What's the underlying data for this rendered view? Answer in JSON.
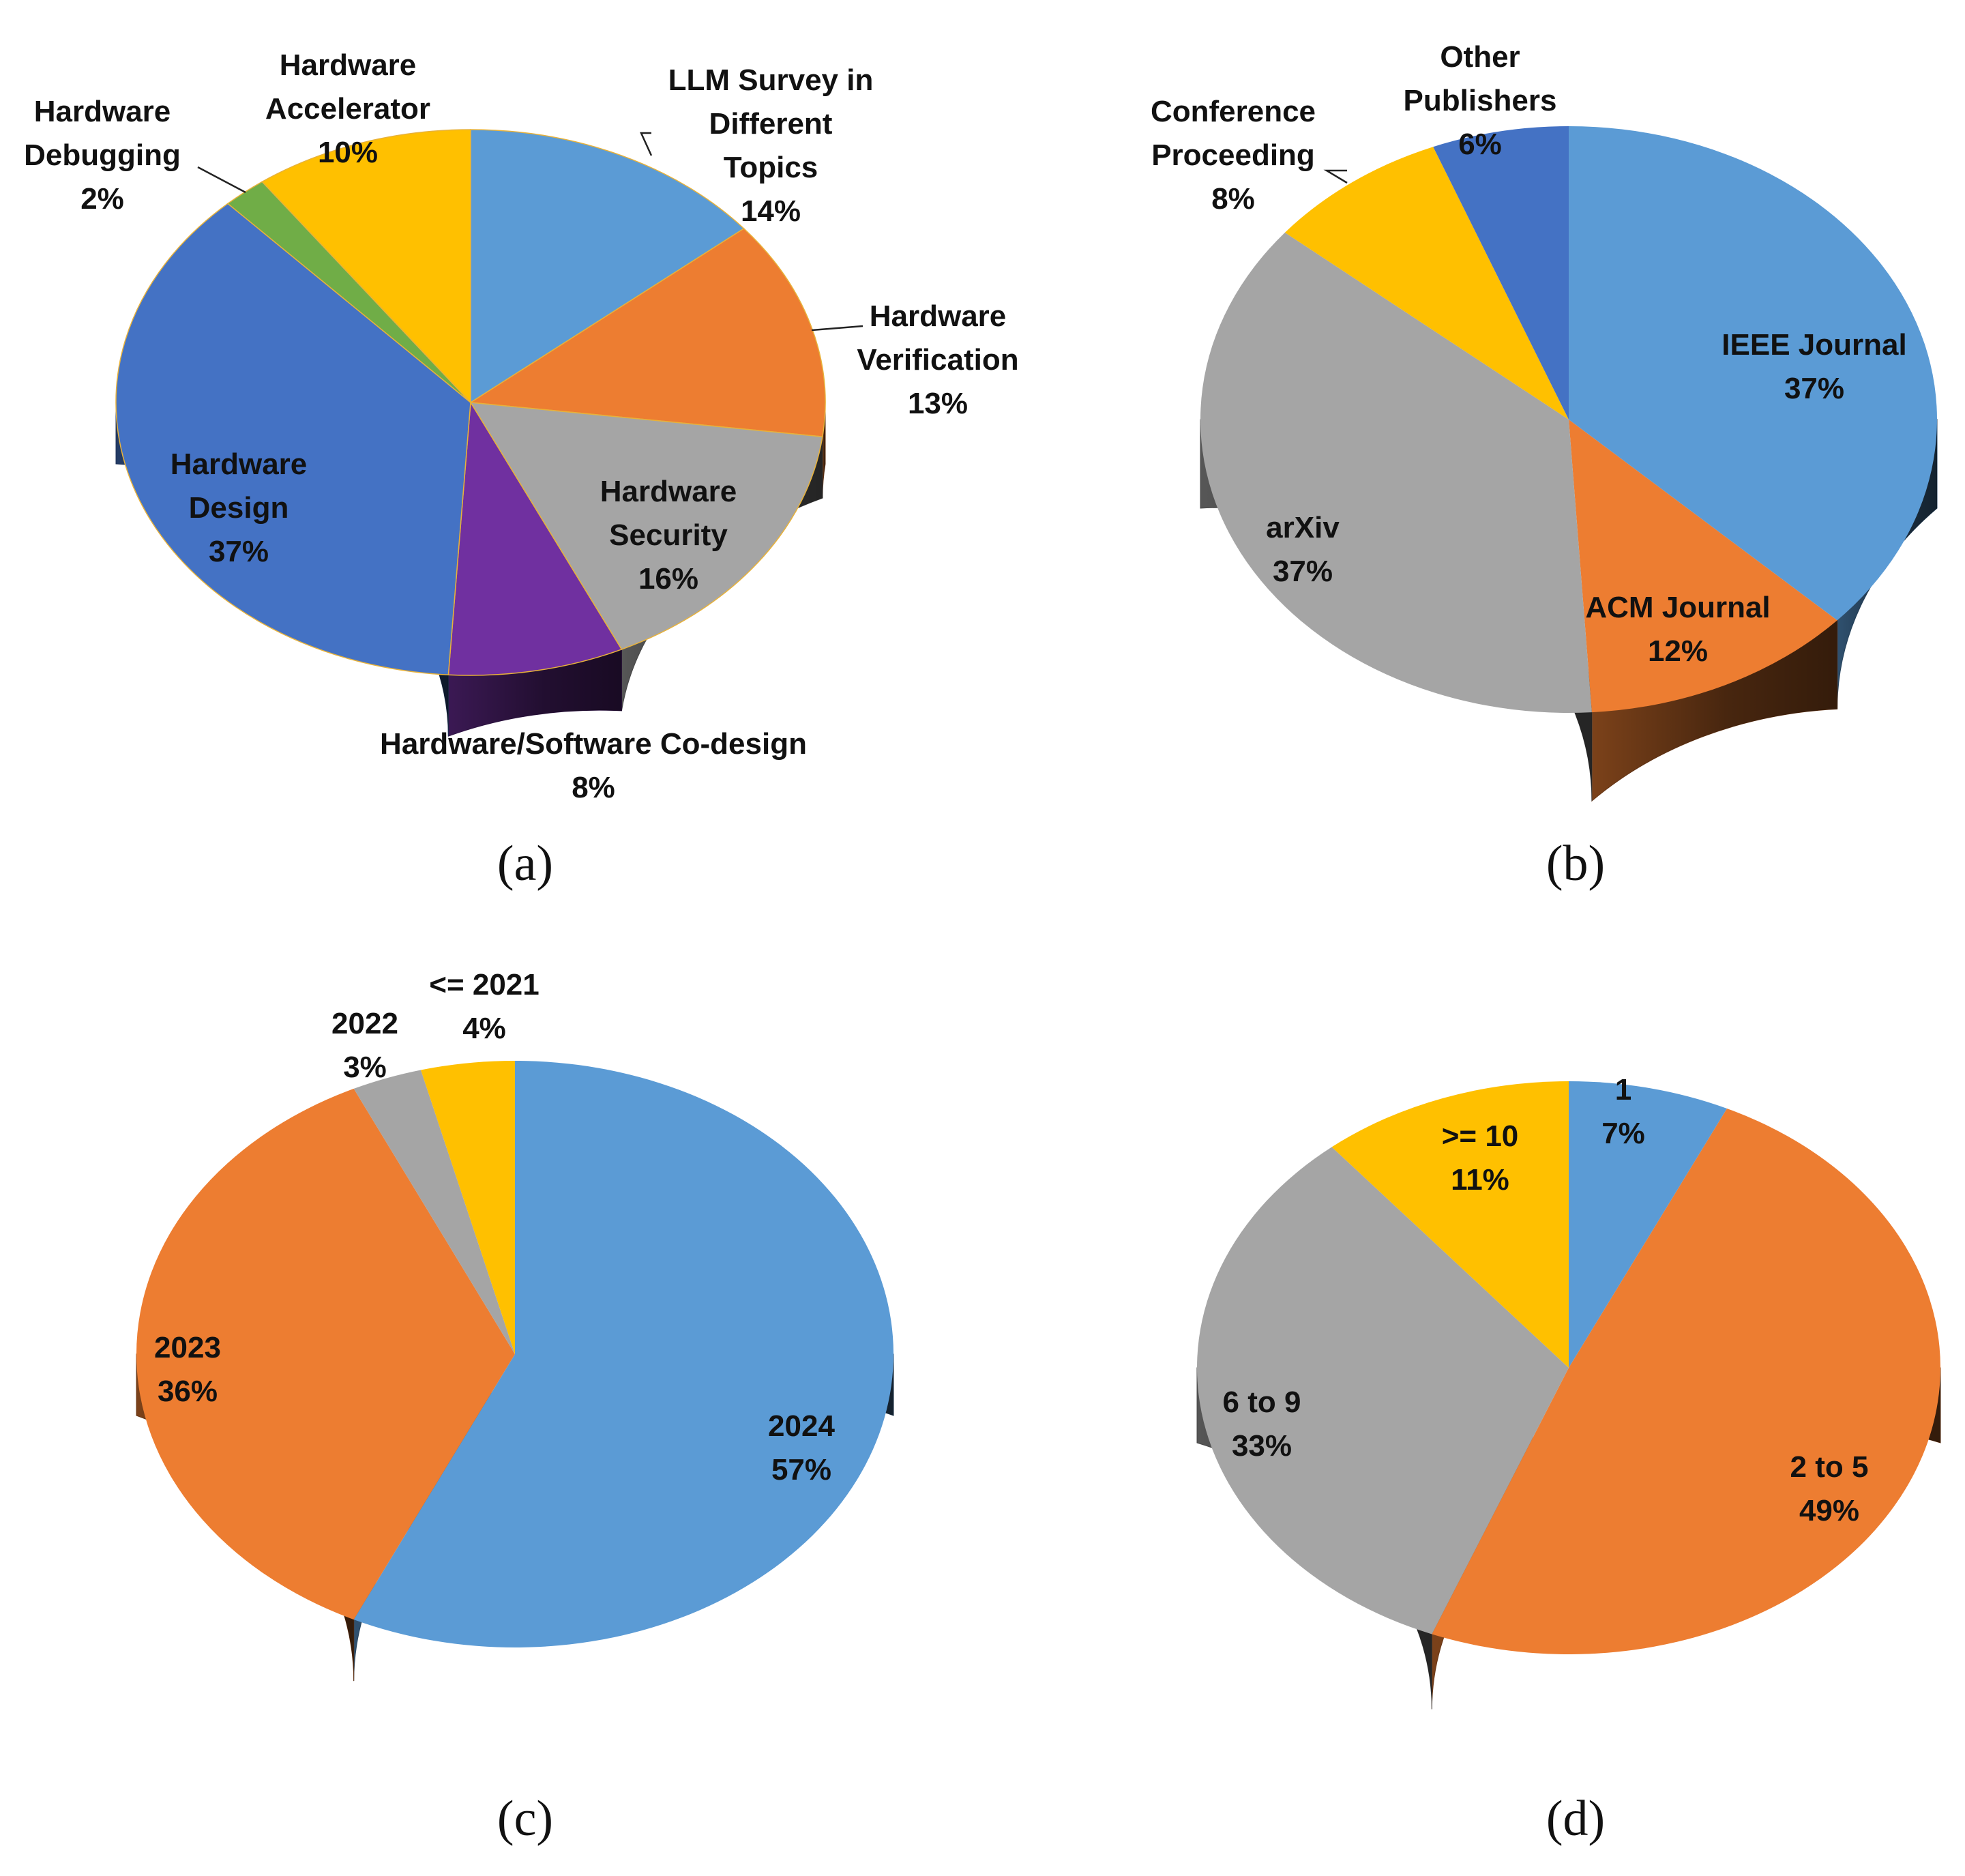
{
  "figure": {
    "captions": [
      "(a)",
      "(b)",
      "(c)",
      "(d)"
    ]
  },
  "chart_data": [
    {
      "type": "pie",
      "title": "",
      "caption": "(a)",
      "slices": [
        {
          "label": [
            "LLM Survey in",
            "Different",
            "Topics"
          ],
          "pct": "14%",
          "value": 14,
          "color": "#5B9BD5"
        },
        {
          "label": [
            "Hardware",
            "Verification"
          ],
          "pct": "13%",
          "value": 13,
          "color": "#ED7D31"
        },
        {
          "label": [
            "Hardware",
            "Security"
          ],
          "pct": "16%",
          "value": 16,
          "color": "#A5A5A5"
        },
        {
          "label": [
            "Hardware/Software Co-design"
          ],
          "pct": "8%",
          "value": 8,
          "color": "#7030A0"
        },
        {
          "label": [
            "Hardware",
            "Design"
          ],
          "pct": "37%",
          "value": 37,
          "color": "#4472C4"
        },
        {
          "label": [
            "Hardware",
            "Debugging"
          ],
          "pct": "2%",
          "value": 2,
          "color": "#70AD47"
        },
        {
          "label": [
            "Hardware",
            "Accelerator"
          ],
          "pct": "10%",
          "value": 10,
          "color": "#FFC000"
        }
      ]
    },
    {
      "type": "pie",
      "title": "",
      "caption": "(b)",
      "slices": [
        {
          "label": [
            "IEEE Journal"
          ],
          "pct": "37%",
          "value": 37,
          "color": "#5B9BD5"
        },
        {
          "label": [
            "ACM Journal"
          ],
          "pct": "12%",
          "value": 12,
          "color": "#ED7D31"
        },
        {
          "label": [
            "arXiv"
          ],
          "pct": "37%",
          "value": 37,
          "color": "#A5A5A5"
        },
        {
          "label": [
            "Conference",
            "Proceeding"
          ],
          "pct": "8%",
          "value": 8,
          "color": "#FFC000"
        },
        {
          "label": [
            "Other",
            "Publishers"
          ],
          "pct": "6%",
          "value": 6,
          "color": "#4472C4"
        }
      ]
    },
    {
      "type": "pie",
      "title": "",
      "caption": "(c)",
      "slices": [
        {
          "label": [
            "2024"
          ],
          "pct": "57%",
          "value": 57,
          "color": "#5B9BD5"
        },
        {
          "label": [
            "2023"
          ],
          "pct": "36%",
          "value": 36,
          "color": "#ED7D31"
        },
        {
          "label": [
            "2022"
          ],
          "pct": "3%",
          "value": 3,
          "color": "#A5A5A5"
        },
        {
          "label": [
            "<= 2021"
          ],
          "pct": "4%",
          "value": 4,
          "color": "#FFC000"
        }
      ]
    },
    {
      "type": "pie",
      "title": "",
      "caption": "(d)",
      "slices": [
        {
          "label": [
            "1"
          ],
          "pct": "7%",
          "value": 7,
          "color": "#5B9BD5"
        },
        {
          "label": [
            "2 to 5"
          ],
          "pct": "49%",
          "value": 49,
          "color": "#ED7D31"
        },
        {
          "label": [
            "6 to 9"
          ],
          "pct": "33%",
          "value": 33,
          "color": "#A5A5A5"
        },
        {
          "label": [
            ">= 10"
          ],
          "pct": "11%",
          "value": 11,
          "color": "#FFC000"
        }
      ]
    }
  ]
}
